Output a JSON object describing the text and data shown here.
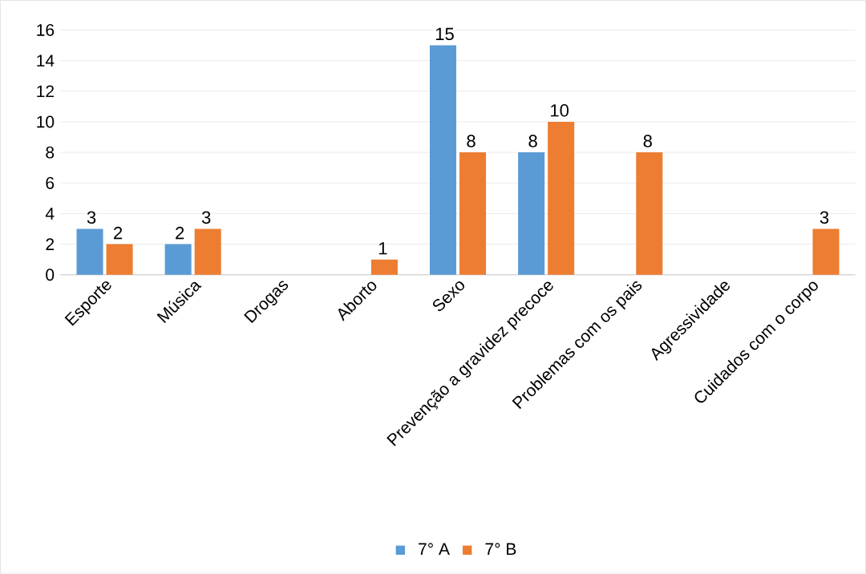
{
  "chart_data": {
    "type": "bar",
    "categories": [
      "Esporte",
      "Música",
      "Drogas",
      "Aborto",
      "Sexo",
      "Prevenção a gravidez precoce",
      "Problemas com os pais",
      "Agressividade",
      "Cuidados com o corpo"
    ],
    "series": [
      {
        "name": "7° A",
        "color": "#5b9bd5",
        "values": [
          3,
          2,
          null,
          null,
          15,
          8,
          null,
          null,
          null
        ],
        "value_labels": [
          "3",
          "2",
          null,
          null,
          "15",
          "8",
          null,
          null,
          null
        ]
      },
      {
        "name": "7° B",
        "color": "#ed7d31",
        "values": [
          2,
          3,
          null,
          1,
          8,
          10,
          8,
          null,
          3
        ],
        "value_labels": [
          "2",
          "3",
          null,
          "1",
          "8",
          "10",
          "8",
          null,
          "3"
        ]
      }
    ],
    "ylim": [
      0,
      16
    ],
    "yticks": [
      0,
      2,
      4,
      6,
      8,
      10,
      12,
      14,
      16
    ],
    "grid": "y",
    "legend": "bottom"
  }
}
